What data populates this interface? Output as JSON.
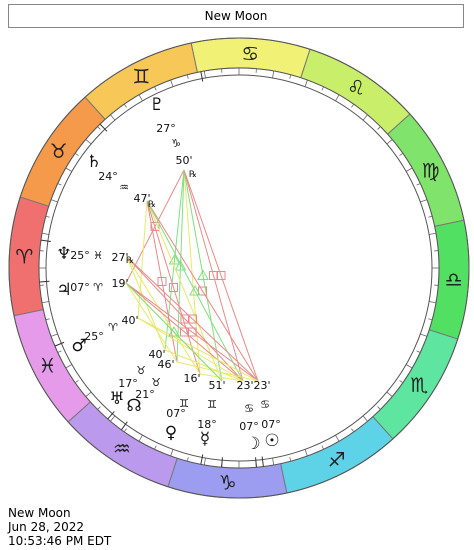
{
  "title": "New Moon",
  "footer": {
    "line1": "New Moon",
    "line2": "Jun 28, 2022",
    "line3": "10:53:46 PM EDT"
  },
  "colors": {
    "aries": "#f06f6f",
    "taurus": "#f59a4a",
    "gemini": "#f7c857",
    "cancer": "#f1f176",
    "leo": "#c9ee6a",
    "virgo": "#80e46c",
    "libra": "#51e061",
    "scorpio": "#5ee5a0",
    "sagittarius": "#5ed3e8",
    "capricorn": "#9c9cf0",
    "aquarius": "#bb99ec",
    "pisces": "#e59be9",
    "aspect_red": "#e88a8a",
    "aspect_green": "#7fe07f",
    "aspect_yellow": "#e8e86a"
  },
  "signs": [
    {
      "name": "aries",
      "glyph": "♈",
      "angle": 183
    },
    {
      "name": "taurus",
      "glyph": "♉",
      "angle": 213
    },
    {
      "name": "gemini",
      "glyph": "♊",
      "angle": 243
    },
    {
      "name": "cancer",
      "glyph": "♋",
      "angle": 273
    },
    {
      "name": "leo",
      "glyph": "♌",
      "angle": 303
    },
    {
      "name": "virgo",
      "glyph": "♍",
      "angle": 333
    },
    {
      "name": "libra",
      "glyph": "♎",
      "angle": 3
    },
    {
      "name": "scorpio",
      "glyph": "♏",
      "angle": 33
    },
    {
      "name": "sagittarius",
      "glyph": "♐",
      "angle": 63
    },
    {
      "name": "capricorn",
      "glyph": "♑",
      "angle": 93
    },
    {
      "name": "aquarius",
      "glyph": "♒",
      "angle": 123
    },
    {
      "name": "pisces",
      "glyph": "♓",
      "angle": 153
    }
  ],
  "planets": [
    {
      "name": "pluto",
      "glyph": "♇",
      "degree": "27°",
      "sign_glyph": "♑",
      "minute": "50'",
      "retro": "℞"
    },
    {
      "name": "saturn",
      "glyph": "♄",
      "degree": "24°",
      "sign_glyph": "♒",
      "minute": "47'",
      "retro": "℞"
    },
    {
      "name": "neptune",
      "glyph": "♆",
      "degree": "25°",
      "sign_glyph": "♓",
      "minute": "27'",
      "retro": "℞"
    },
    {
      "name": "jupiter",
      "glyph": "♃",
      "degree": "07°",
      "sign_glyph": "♈",
      "minute": "19'",
      "retro": ""
    },
    {
      "name": "mars",
      "glyph": "♂",
      "degree": "25°",
      "sign_glyph": "♈",
      "minute": "40'",
      "retro": ""
    },
    {
      "name": "uranus",
      "glyph": "♅",
      "degree": "17°",
      "sign_glyph": "♉",
      "minute": "40'",
      "retro": ""
    },
    {
      "name": "node",
      "glyph": "☊",
      "degree": "21°",
      "sign_glyph": "♉",
      "minute": "46'",
      "retro": ""
    },
    {
      "name": "venus",
      "glyph": "♀",
      "degree": "07°",
      "sign_glyph": "♊",
      "minute": "16'",
      "retro": ""
    },
    {
      "name": "mercury",
      "glyph": "☿",
      "degree": "18°",
      "sign_glyph": "♊",
      "minute": "51'",
      "retro": ""
    },
    {
      "name": "moon",
      "glyph": "☽",
      "degree": "07°",
      "sign_glyph": "♋",
      "minute": "23'",
      "retro": ""
    },
    {
      "name": "sun",
      "glyph": "☉",
      "degree": "07°",
      "sign_glyph": "♋",
      "minute": "23'",
      "retro": ""
    }
  ]
}
